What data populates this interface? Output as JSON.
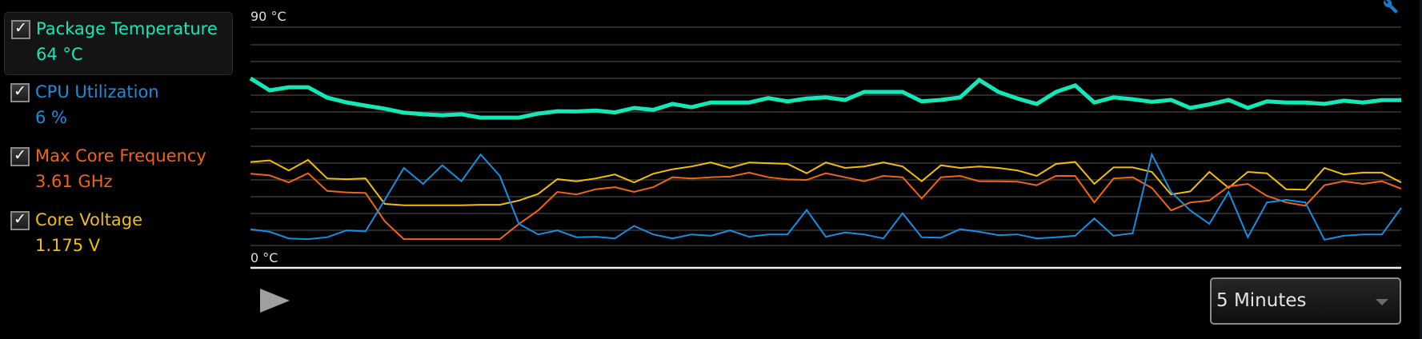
{
  "metrics": [
    {
      "label": "Package Temperature",
      "value": "64 °C",
      "color": "#14e8b8",
      "checked": true,
      "selected": true
    },
    {
      "label": "CPU Utilization",
      "value": "6 %",
      "color": "#168ee4",
      "checked": true,
      "selected": false
    },
    {
      "label": "Max Core Frequency",
      "value": "3.61 GHz",
      "color": "#f06414",
      "checked": true,
      "selected": false
    },
    {
      "label": "Core Voltage",
      "value": "1.175 V",
      "color": "#f0be0a",
      "checked": true,
      "selected": false
    }
  ],
  "checkbox_mark": "✓",
  "chart_data": {
    "type": "line",
    "title": "",
    "ylabel_top": "90 °C",
    "ylabel_bottom": "0 °C",
    "ylim": [
      0,
      100
    ],
    "y_units": "percent of scale",
    "grid": true,
    "series": [
      {
        "name": "Package Temperature",
        "color": "#14e8b8",
        "width": 5,
        "values": [
          71.1,
          66.0,
          67.3,
          67.3,
          62.9,
          60.9,
          59.5,
          58.2,
          56.5,
          55.8,
          55.4,
          55.8,
          54.4,
          54.4,
          54.4,
          56.1,
          57.1,
          57.0,
          57.4,
          56.6,
          58.5,
          57.7,
          60.2,
          58.8,
          60.8,
          60.8,
          60.8,
          62.7,
          61.3,
          62.5,
          63.0,
          61.9,
          65.3,
          65.3,
          65.3,
          61.3,
          61.9,
          63.0,
          70.4,
          65.3,
          62.5,
          60.2,
          65.3,
          68.1,
          60.8,
          63.0,
          62.2,
          61.1,
          61.9,
          58.5,
          60.0,
          61.9,
          58.5,
          61.3,
          60.8,
          60.8,
          60.2,
          61.6,
          60.8,
          61.8,
          61.8
        ]
      },
      {
        "name": "Core Voltage",
        "color": "#f0be0a",
        "width": 2,
        "values": [
          35.5,
          36.2,
          31.9,
          36.4,
          28.5,
          28.2,
          28.5,
          17.7,
          17.1,
          17.1,
          17.1,
          17.1,
          17.3,
          17.3,
          19.1,
          21.9,
          28.2,
          27.3,
          28.5,
          30.2,
          26.8,
          30.5,
          32.4,
          33.6,
          35.3,
          33.0,
          35.3,
          35.0,
          34.7,
          30.7,
          35.3,
          33.0,
          33.6,
          35.3,
          33.6,
          27.3,
          34.1,
          33.0,
          33.6,
          33.0,
          31.9,
          29.6,
          34.7,
          35.5,
          26.2,
          33.2,
          33.2,
          31.3,
          21.7,
          23.0,
          31.3,
          24.5,
          31.3,
          30.7,
          23.9,
          23.7,
          33.0,
          30.2,
          31.0,
          31.0,
          26.8
        ]
      },
      {
        "name": "Max Core Frequency",
        "color": "#f06414",
        "width": 2,
        "values": [
          30.5,
          29.8,
          26.8,
          30.7,
          23.2,
          22.6,
          22.3,
          10.3,
          2.7,
          2.7,
          2.7,
          2.7,
          2.7,
          2.7,
          9.2,
          14.9,
          22.8,
          21.7,
          23.9,
          24.8,
          22.8,
          24.8,
          29.0,
          28.5,
          29.0,
          29.3,
          31.0,
          29.0,
          28.1,
          27.9,
          30.7,
          29.0,
          27.3,
          29.6,
          29.0,
          20.0,
          29.0,
          29.6,
          27.3,
          27.3,
          27.1,
          25.6,
          29.6,
          29.6,
          18.3,
          28.5,
          29.0,
          24.5,
          14.9,
          18.3,
          19.1,
          25.1,
          26.2,
          21.1,
          18.3,
          16.9,
          25.6,
          27.3,
          26.2,
          27.3,
          24.1
        ]
      },
      {
        "name": "CPU Utilization",
        "color": "#168ee4",
        "width": 2,
        "values": [
          6.9,
          5.8,
          3.0,
          2.7,
          3.5,
          6.4,
          6.0,
          19.4,
          33.0,
          26.2,
          34.1,
          27.3,
          38.7,
          29.6,
          9.2,
          4.7,
          6.4,
          3.5,
          3.7,
          3.0,
          8.3,
          4.7,
          3.0,
          4.7,
          4.1,
          6.4,
          3.7,
          4.7,
          4.7,
          15.1,
          3.7,
          5.5,
          4.7,
          3.0,
          13.7,
          3.5,
          3.3,
          6.9,
          5.8,
          4.4,
          4.7,
          3.0,
          3.5,
          4.1,
          11.5,
          4.1,
          5.2,
          38.7,
          22.8,
          14.9,
          9.2,
          22.8,
          3.5,
          18.3,
          19.4,
          18.3,
          2.4,
          4.1,
          4.7,
          4.7,
          16.0
        ]
      }
    ]
  },
  "controls": {
    "time_range": "5 Minutes"
  }
}
